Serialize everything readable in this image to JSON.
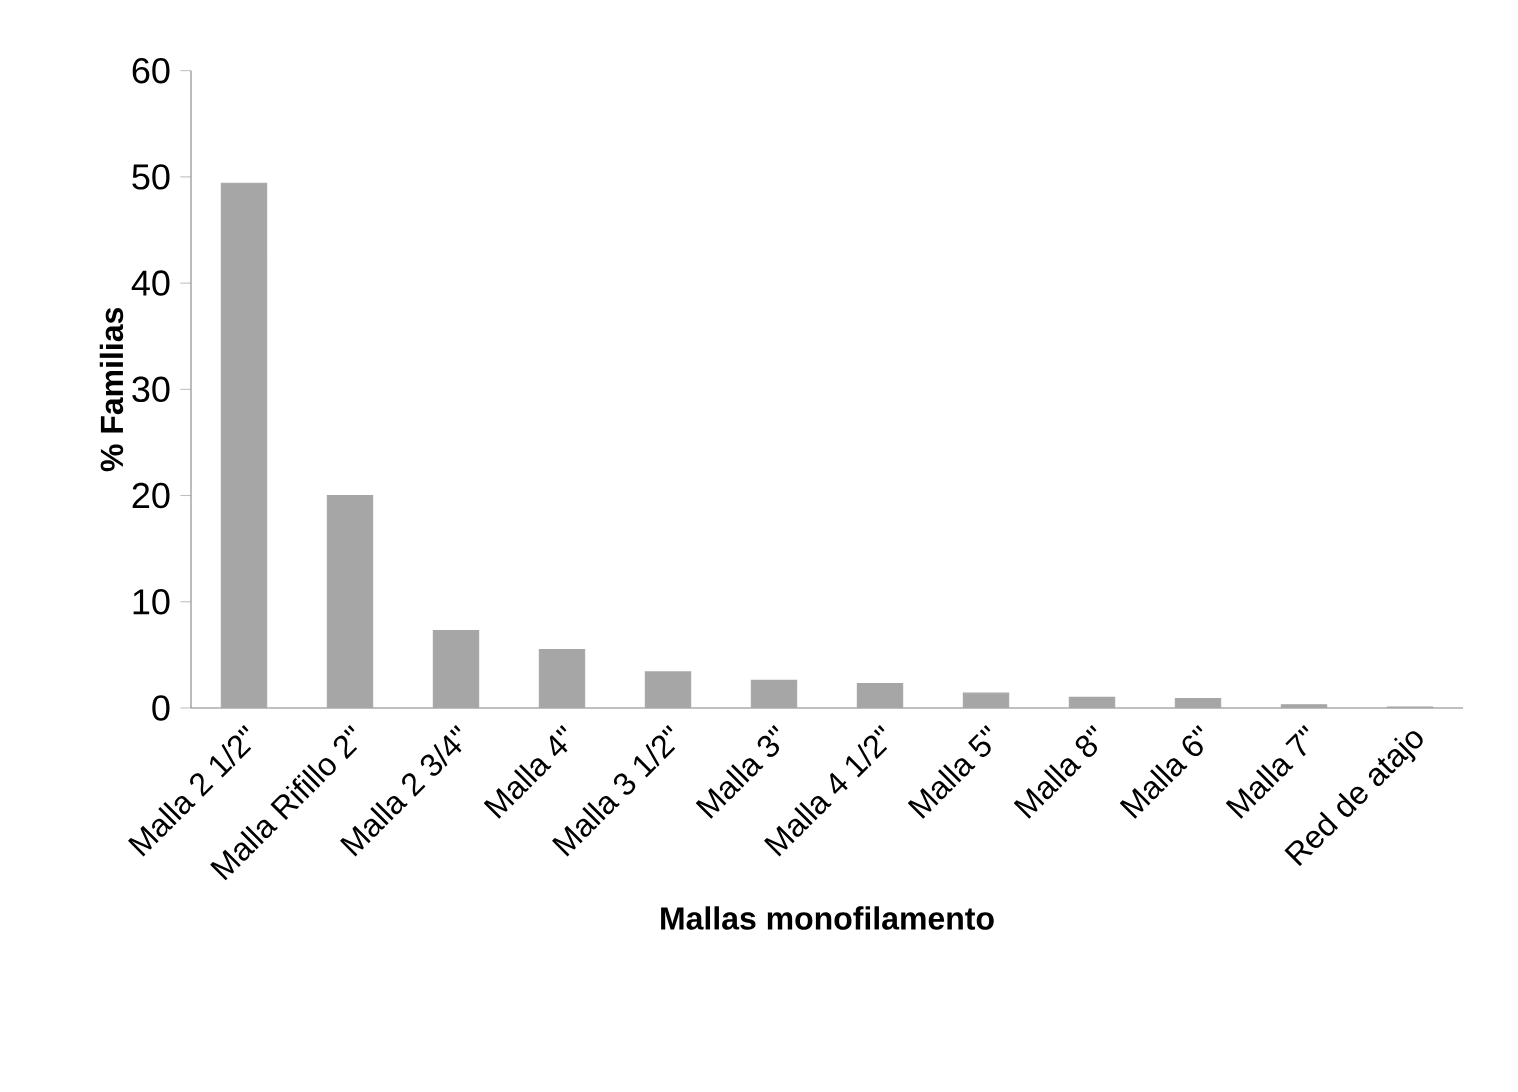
{
  "chart_data": {
    "type": "bar",
    "xlabel": "Mallas monofilamento",
    "ylabel": "% Familias",
    "categories": [
      "Malla 2 1/2\"",
      "Malla Rifillo 2\"",
      "Malla 2 3/4\"",
      "Malla 4\"",
      "Malla 3 1/2\"",
      "Malla 3\"",
      "Malla 4 1/2\"",
      "Malla 5\"",
      "Malla 8\"",
      "Malla 6\"",
      "Malla 7\"",
      "Red de atajo"
    ],
    "values": [
      49.4,
      20.0,
      7.3,
      5.5,
      3.4,
      2.6,
      2.3,
      1.4,
      1.0,
      0.9,
      0.3,
      0.1
    ],
    "color": "#a6a6a6",
    "ylim": [
      0,
      60
    ],
    "yticks": [
      0,
      10,
      20,
      30,
      40,
      50,
      60
    ],
    "grid": false
  }
}
